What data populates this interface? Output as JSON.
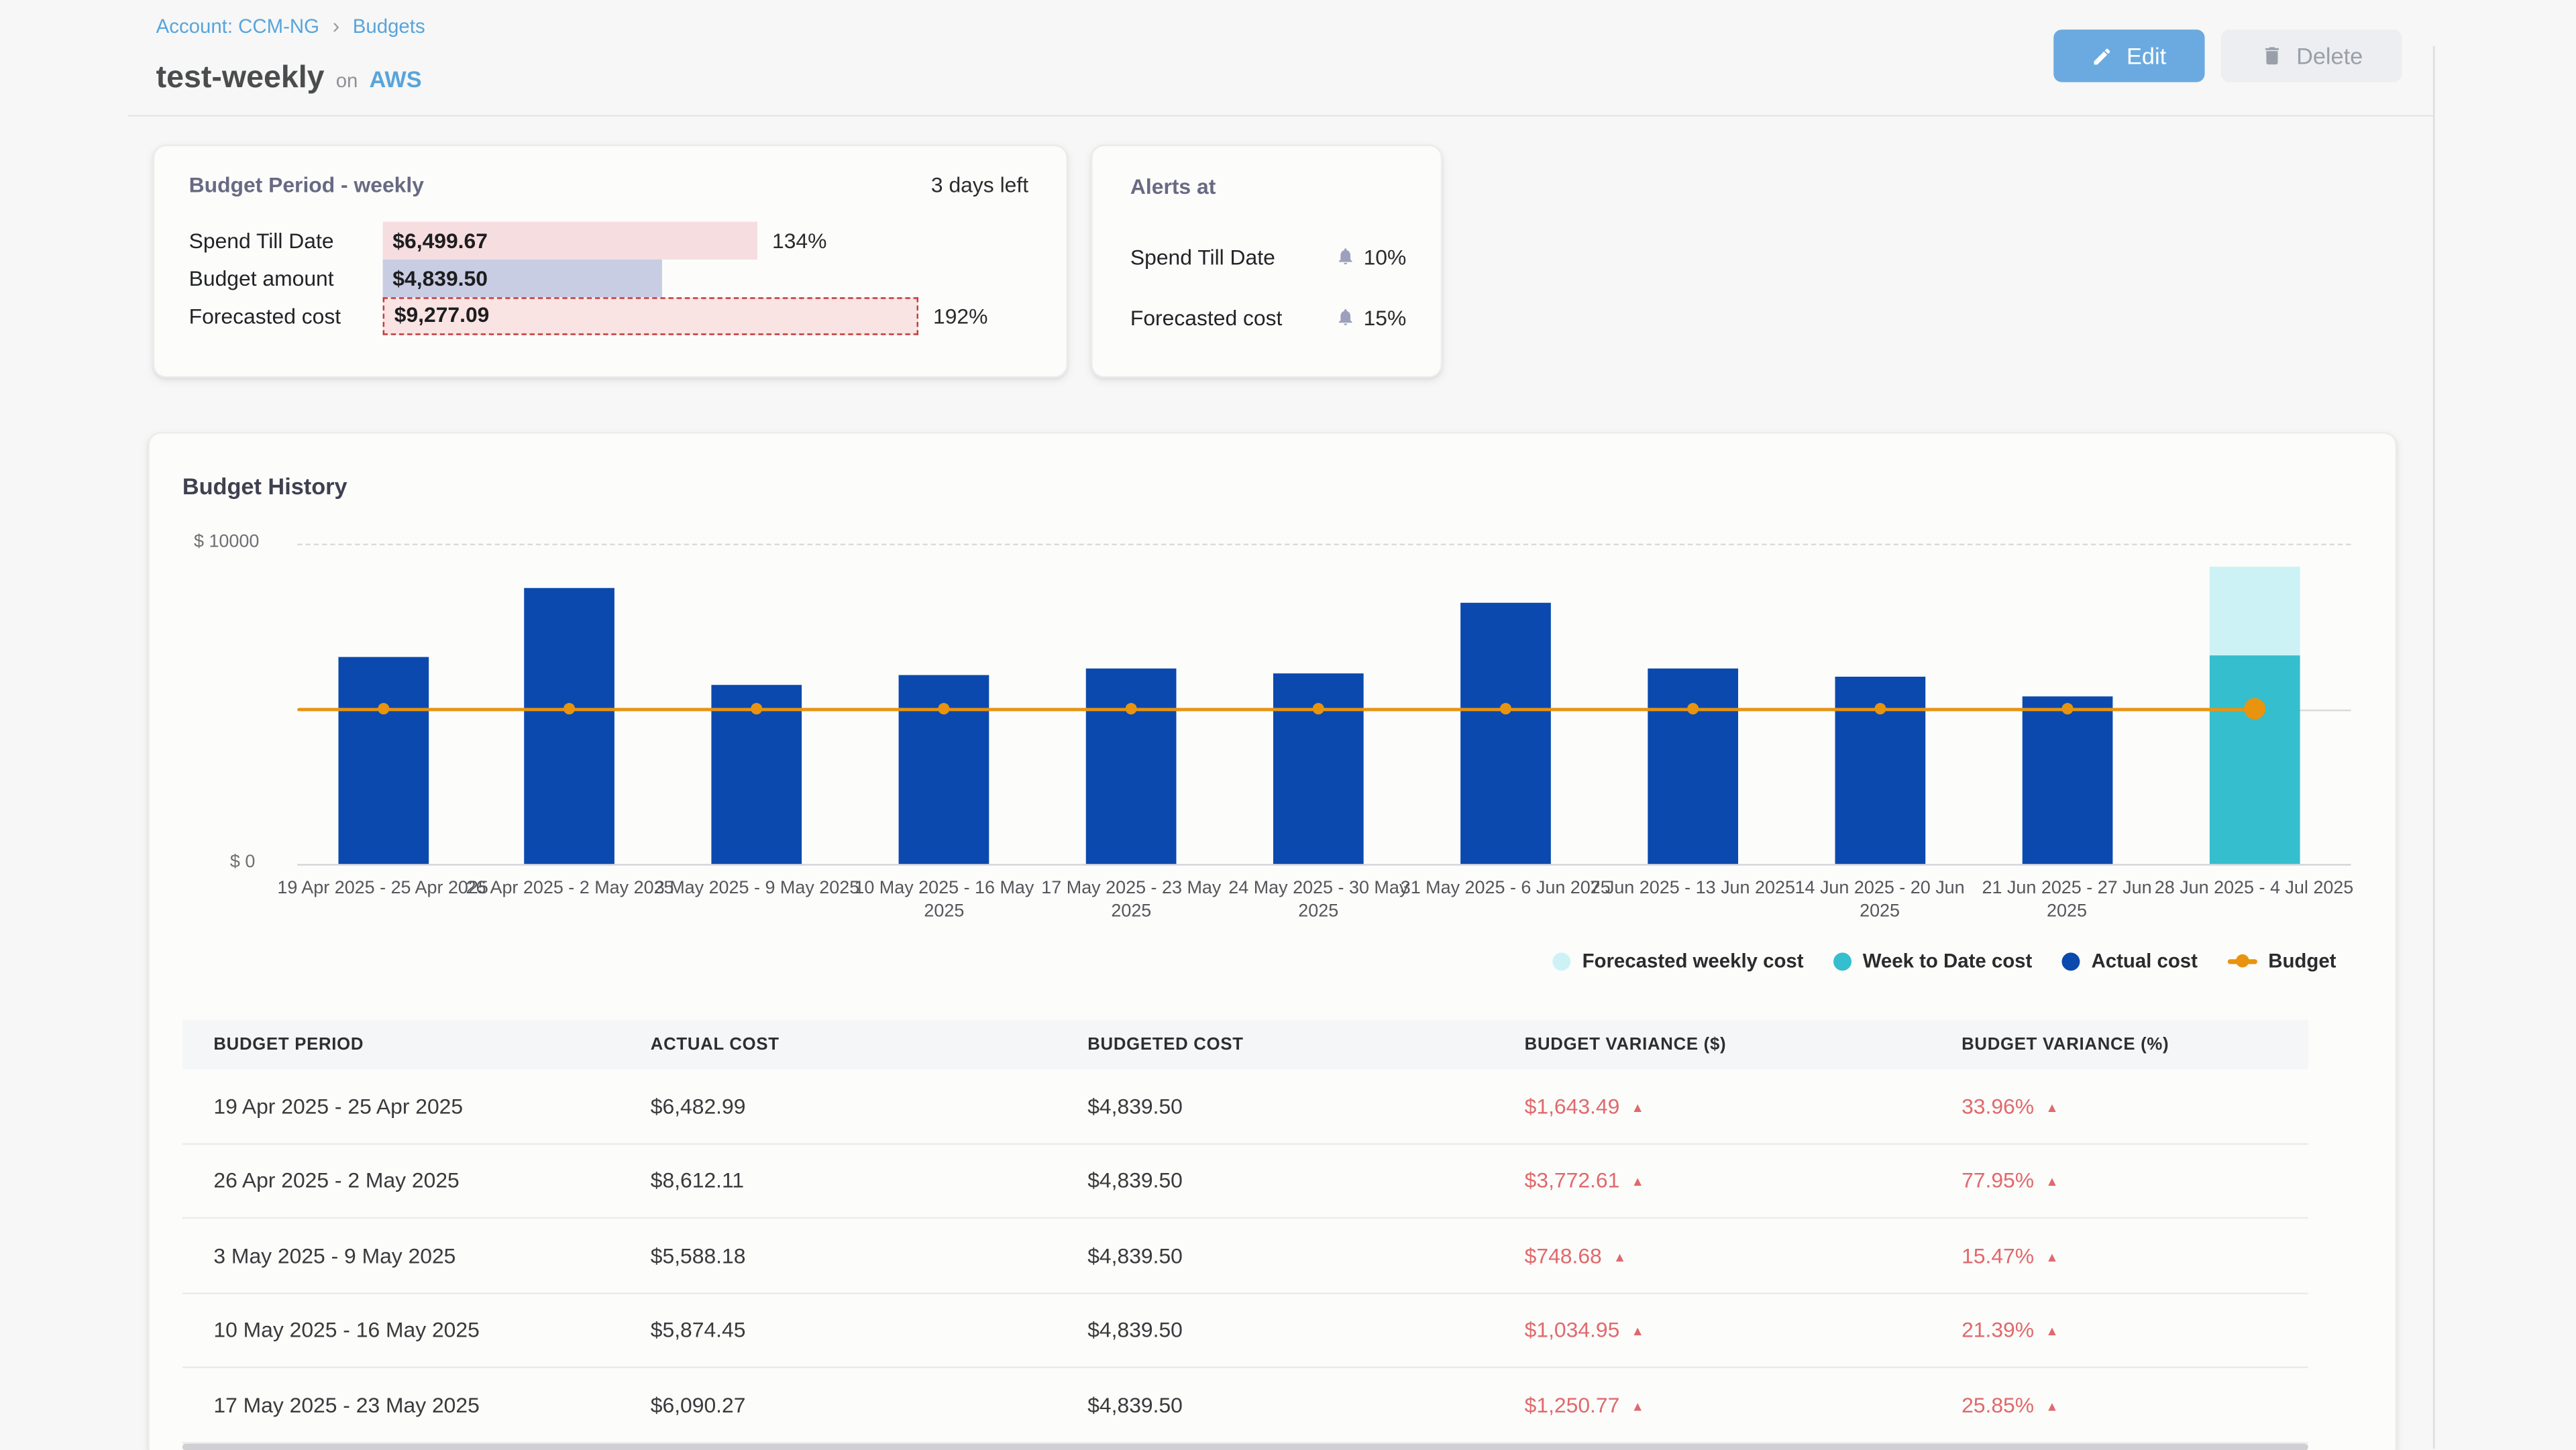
{
  "breadcrumb": {
    "account": "Account: CCM-NG",
    "separator": "›",
    "current": "Budgets"
  },
  "header": {
    "title": "test-weekly",
    "on_label": "on",
    "provider": "AWS",
    "edit_label": "Edit",
    "delete_label": "Delete"
  },
  "icons": {
    "edit": "pencil-icon",
    "delete": "trash-icon",
    "alert": "bell-icon",
    "breadcrumb_separator": "chevron-right-icon"
  },
  "budget_period_card": {
    "title": "Budget Period - weekly",
    "days_left": "3 days left",
    "rows": [
      {
        "label": "Spend Till Date",
        "value": "$6,499.67",
        "percent": 134,
        "percent_label": "134%",
        "style": "spend"
      },
      {
        "label": "Budget amount",
        "value": "$4,839.50",
        "percent": 100,
        "percent_label": "",
        "style": "budget"
      },
      {
        "label": "Forecasted cost",
        "value": "$9,277.09",
        "percent": 192,
        "percent_label": "192%",
        "style": "forecast"
      }
    ]
  },
  "alerts_card": {
    "title": "Alerts at",
    "rows": [
      {
        "label": "Spend Till Date",
        "threshold": "10%"
      },
      {
        "label": "Forecasted cost",
        "threshold": "15%"
      }
    ]
  },
  "chart_card": {
    "title": "Budget History"
  },
  "chart_data": {
    "type": "bar",
    "title": "Budget History",
    "y_axis": {
      "min": 0,
      "max": 10000,
      "min_label": "$ 0",
      "max_label": "$ 10000"
    },
    "grid": "horizontal",
    "legend_position": "bottom-right",
    "categories": [
      "19 Apr 2025 - 25 Apr 2025",
      "26 Apr 2025 - 2 May 2025",
      "3 May 2025 - 9 May 2025",
      "10 May 2025 - 16 May 2025",
      "17 May 2025 - 23 May 2025",
      "24 May 2025 - 30 May 2025",
      "31 May 2025 - 6 Jun 2025",
      "7 Jun 2025 - 13 Jun 2025",
      "14 Jun 2025 - 20 Jun 2025",
      "21 Jun 2025 - 27 Jun 2025",
      "28 Jun 2025 - 4 Jul 2025"
    ],
    "series": [
      {
        "name": "Actual cost",
        "type": "column",
        "color": "#0b49ae",
        "values": [
          6482.99,
          8612.11,
          5588.18,
          5874.45,
          6090.27,
          5950,
          8160,
          6080,
          5840,
          5230,
          null
        ]
      },
      {
        "name": "Week to Date cost",
        "type": "column",
        "color": "#35becd",
        "values": [
          null,
          null,
          null,
          null,
          null,
          null,
          null,
          null,
          null,
          null,
          6499.67
        ]
      },
      {
        "name": "Forecasted weekly cost",
        "type": "column",
        "color": "#cdf2f6",
        "values": [
          null,
          null,
          null,
          null,
          null,
          null,
          null,
          null,
          null,
          null,
          9277.09
        ]
      },
      {
        "name": "Budget",
        "type": "line",
        "color": "#e8940f",
        "values": [
          4839.5,
          4839.5,
          4839.5,
          4839.5,
          4839.5,
          4839.5,
          4839.5,
          4839.5,
          4839.5,
          4839.5,
          4839.5
        ]
      }
    ],
    "legend": [
      "Forecasted weekly cost",
      "Week to Date cost",
      "Actual cost",
      "Budget"
    ]
  },
  "table": {
    "columns": [
      "BUDGET PERIOD",
      "ACTUAL COST",
      "BUDGETED COST",
      "BUDGET VARIANCE ($)",
      "BUDGET VARIANCE (%)"
    ],
    "rows": [
      {
        "period": "19 Apr 2025 - 25 Apr 2025",
        "actual": "$6,482.99",
        "budgeted": "$4,839.50",
        "variance_usd": "$1,643.49",
        "variance_pct": "33.96%"
      },
      {
        "period": "26 Apr 2025 - 2 May 2025",
        "actual": "$8,612.11",
        "budgeted": "$4,839.50",
        "variance_usd": "$3,772.61",
        "variance_pct": "77.95%"
      },
      {
        "period": "3 May 2025 - 9 May 2025",
        "actual": "$5,588.18",
        "budgeted": "$4,839.50",
        "variance_usd": "$748.68",
        "variance_pct": "15.47%"
      },
      {
        "period": "10 May 2025 - 16 May 2025",
        "actual": "$5,874.45",
        "budgeted": "$4,839.50",
        "variance_usd": "$1,034.95",
        "variance_pct": "21.39%"
      },
      {
        "period": "17 May 2025 - 23 May 2025",
        "actual": "$6,090.27",
        "budgeted": "$4,839.50",
        "variance_usd": "$1,250.77",
        "variance_pct": "25.85%"
      }
    ]
  },
  "colors": {
    "link_blue": "#58a4dc",
    "edit_button": "#6aaae0",
    "actual_cost": "#0b49ae",
    "week_to_date": "#35becd",
    "forecasted_weekly": "#cdf2f6",
    "budget_line": "#e8940f",
    "variance_red": "#e0696b",
    "spend_bar": "#f6dddf",
    "budget_bar": "#c8cde3",
    "forecast_bar_border": "#c43b3b"
  }
}
